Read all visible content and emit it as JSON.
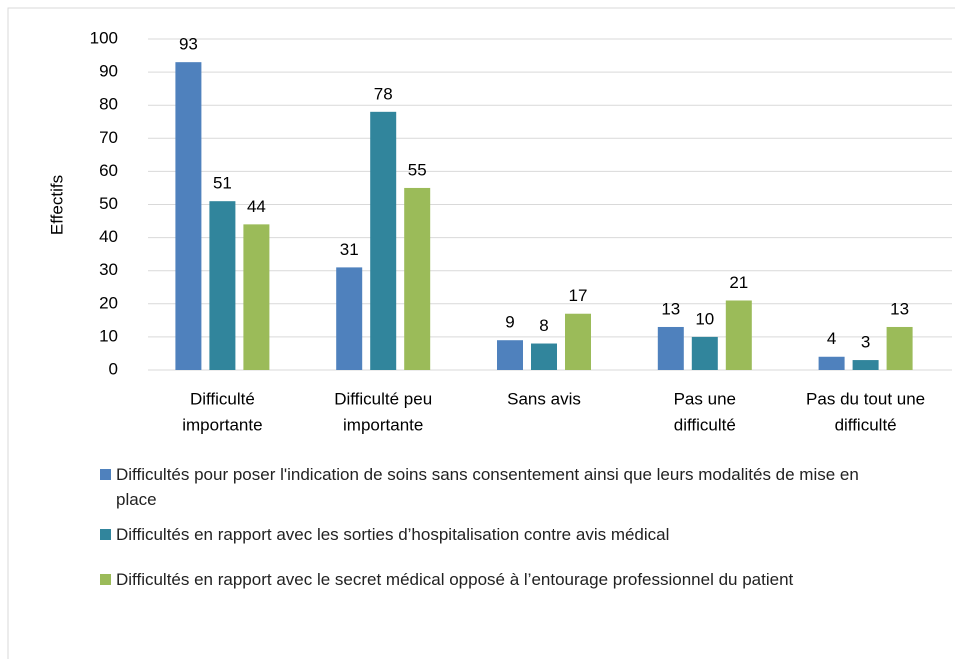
{
  "chart_data": {
    "type": "bar",
    "y_label": "Effectifs",
    "categories": [
      [
        "Difficulté",
        "importante"
      ],
      [
        "Difficulté peu",
        "importante"
      ],
      [
        "Sans avis"
      ],
      [
        "Pas une",
        "difficulté"
      ],
      [
        "Pas du tout une",
        "difficulté"
      ]
    ],
    "series": [
      {
        "name": "Difficultés pour poser l'indication de soins sans consentement ainsi que leurs modalités de mise en place",
        "color": "#4f81bd",
        "values": [
          93,
          31,
          9,
          13,
          4
        ]
      },
      {
        "name": "Difficultés en rapport avec les sorties d’hospitalisation contre avis médical",
        "color": "#31859c",
        "values": [
          51,
          78,
          8,
          10,
          3
        ]
      },
      {
        "name": "Difficultés en rapport avec le secret médical opposé à l’entourage professionnel du patient",
        "color": "#9bbb59",
        "values": [
          44,
          55,
          17,
          21,
          13
        ]
      }
    ],
    "ylim": [
      0,
      100
    ],
    "yticks": [
      0,
      10,
      20,
      30,
      40,
      50,
      60,
      70,
      80,
      90,
      100
    ],
    "grid": true
  }
}
